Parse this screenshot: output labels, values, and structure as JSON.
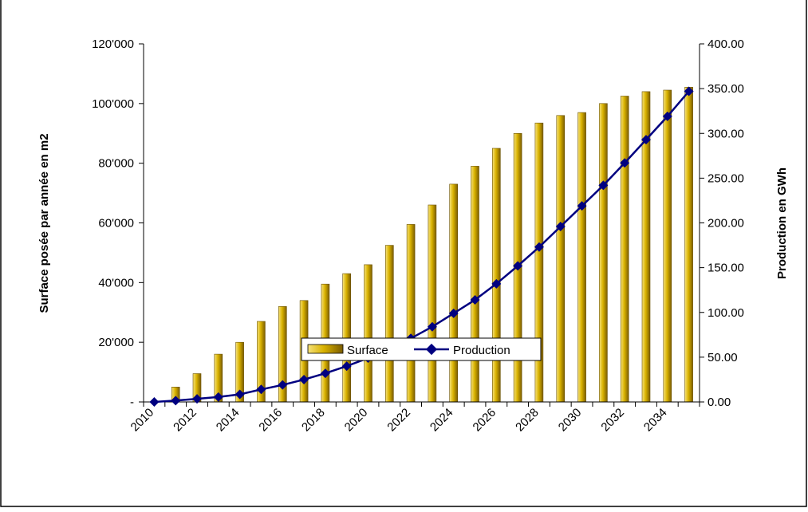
{
  "chart_data": {
    "type": "bar",
    "categories": [
      "2010",
      "2011",
      "2012",
      "2013",
      "2014",
      "2015",
      "2016",
      "2017",
      "2018",
      "2019",
      "2020",
      "2021",
      "2022",
      "2023",
      "2024",
      "2025",
      "2026",
      "2027",
      "2028",
      "2029",
      "2030",
      "2031",
      "2032",
      "2033",
      "2034",
      "2035"
    ],
    "x_tick_labels": [
      "2010",
      "2012",
      "2014",
      "2016",
      "2018",
      "2020",
      "2022",
      "2024",
      "2026",
      "2028",
      "2030",
      "2032",
      "2034"
    ],
    "series": [
      {
        "name": "Surface",
        "type": "bar",
        "axis": "left",
        "color": "#C9A400",
        "values": [
          0,
          5000,
          9500,
          16000,
          20000,
          27000,
          32000,
          34000,
          39500,
          43000,
          46000,
          52500,
          59500,
          66000,
          73000,
          79000,
          85000,
          90000,
          93500,
          96000,
          97000,
          100000,
          102500,
          104000,
          104500,
          105500
        ]
      },
      {
        "name": "Production",
        "type": "line",
        "axis": "right",
        "color": "#000080",
        "values": [
          0,
          1.5,
          3.5,
          5.5,
          8.5,
          14,
          19,
          25,
          32,
          40,
          49,
          59,
          71,
          84,
          99,
          114,
          132,
          152,
          173,
          196,
          219,
          242,
          267,
          293,
          319,
          347
        ]
      }
    ],
    "ylabel": "Surface posée par année en m2",
    "y2label": "Production en GWh",
    "ylim": [
      0,
      120000
    ],
    "y2lim": [
      0,
      400
    ],
    "y_ticks": [
      {
        "value": 0,
        "label": "-"
      },
      {
        "value": 20000,
        "label": "20'000"
      },
      {
        "value": 40000,
        "label": "40'000"
      },
      {
        "value": 60000,
        "label": "60'000"
      },
      {
        "value": 80000,
        "label": "80'000"
      },
      {
        "value": 100000,
        "label": "100'000"
      },
      {
        "value": 120000,
        "label": "120'000"
      }
    ],
    "y2_ticks": [
      {
        "value": 0,
        "label": "0.00"
      },
      {
        "value": 50,
        "label": "50.00"
      },
      {
        "value": 100,
        "label": "100.00"
      },
      {
        "value": 150,
        "label": "150.00"
      },
      {
        "value": 200,
        "label": "200.00"
      },
      {
        "value": 250,
        "label": "250.00"
      },
      {
        "value": 300,
        "label": "300.00"
      },
      {
        "value": 350,
        "label": "350.00"
      },
      {
        "value": 400,
        "label": "400.00"
      }
    ],
    "grid": false,
    "legend_position": "bottom"
  }
}
